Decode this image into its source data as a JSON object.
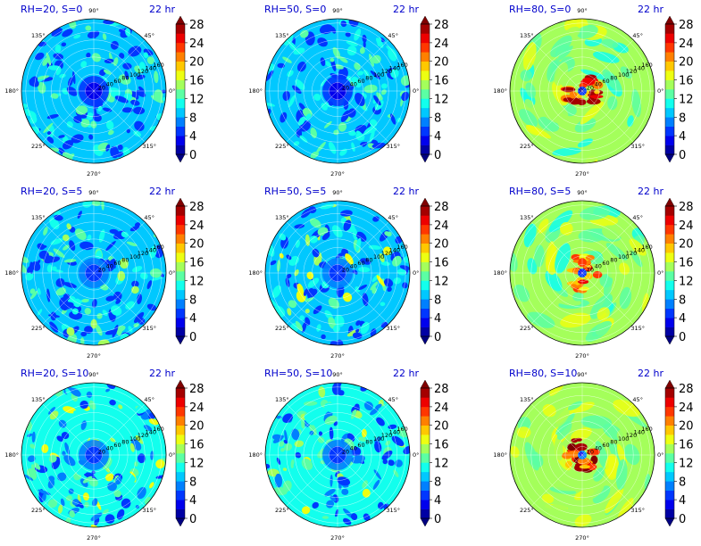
{
  "chart_data": {
    "type": "heatmap",
    "projection": "polar",
    "layout": {
      "rows": 3,
      "cols": 3
    },
    "time_label": "22 hr",
    "angle_ticks": [
      "0°",
      "45°",
      "90°",
      "135°",
      "180°",
      "225°",
      "270°",
      "315°"
    ],
    "radial_ticks": [
      20,
      40,
      60,
      80,
      100,
      120,
      140,
      160
    ],
    "radial_max": 170,
    "colorbar": {
      "min": 0,
      "max": 28,
      "step": 2,
      "extend": "both",
      "tick_labels": [
        "0",
        "4",
        "8",
        "12",
        "16",
        "20",
        "24",
        "28"
      ],
      "colormap": "jet"
    },
    "panels": [
      {
        "title": "RH=20, S=0",
        "rh": 20,
        "s": 0,
        "background_level": 9,
        "center_level": 3,
        "hotspot_level": 14,
        "eye": false
      },
      {
        "title": "RH=50, S=0",
        "rh": 50,
        "s": 0,
        "background_level": 9,
        "center_level": 3,
        "hotspot_level": 14,
        "eye": false
      },
      {
        "title": "RH=80, S=0",
        "rh": 80,
        "s": 0,
        "background_level": 14,
        "center_level": 4,
        "hotspot_level": 26,
        "eye": true
      },
      {
        "title": "RH=20, S=5",
        "rh": 20,
        "s": 5,
        "background_level": 9,
        "center_level": 4,
        "hotspot_level": 15,
        "eye": false
      },
      {
        "title": "RH=50, S=5",
        "rh": 50,
        "s": 5,
        "background_level": 9,
        "center_level": 4,
        "hotspot_level": 18,
        "eye": false
      },
      {
        "title": "RH=80, S=5",
        "rh": 80,
        "s": 5,
        "background_level": 14,
        "center_level": 5,
        "hotspot_level": 23,
        "eye": true
      },
      {
        "title": "RH=20, S=10",
        "rh": 20,
        "s": 10,
        "background_level": 10,
        "center_level": 4,
        "hotspot_level": 18,
        "eye": false
      },
      {
        "title": "RH=50, S=10",
        "rh": 50,
        "s": 10,
        "background_level": 10,
        "center_level": 4,
        "hotspot_level": 18,
        "eye": false
      },
      {
        "title": "RH=80, S=10",
        "rh": 80,
        "s": 10,
        "background_level": 15,
        "center_level": 6,
        "hotspot_level": 27,
        "eye": true
      }
    ]
  }
}
